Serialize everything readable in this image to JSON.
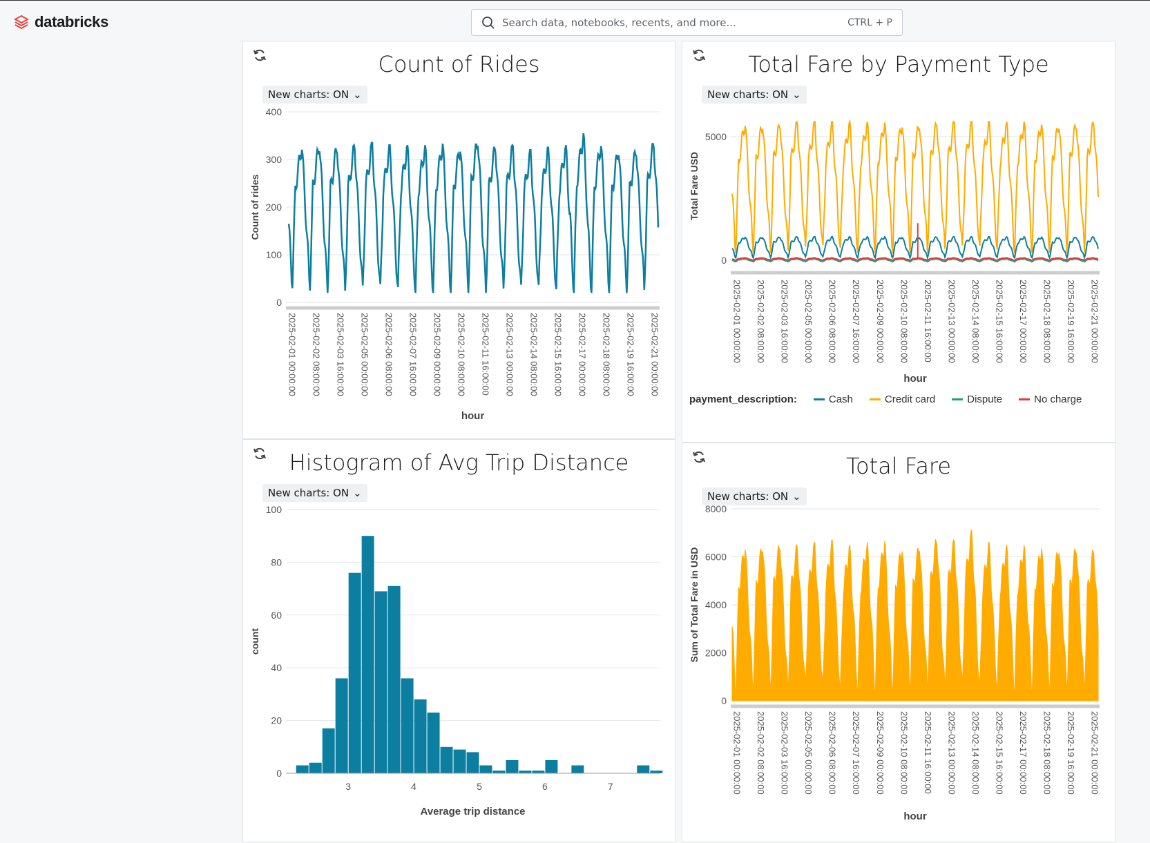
{
  "app": {
    "logo_text": "databricks"
  },
  "search": {
    "placeholder": "Search data, notebooks, recents, and more...",
    "shortcut": "CTRL + P"
  },
  "panels": [
    {
      "title": "Count of Rides",
      "toggle_label": "New charts: ON"
    },
    {
      "title": "Total Fare by Payment Type",
      "toggle_label": "New charts: ON"
    },
    {
      "title": "Histogram of Avg Trip Distance",
      "toggle_label": "New charts: ON"
    },
    {
      "title": "Total Fare",
      "toggle_label": "New charts: ON"
    }
  ],
  "colors": {
    "teal": "#0c7ea0",
    "orange": "#ffab00",
    "green": "#1aa37a",
    "red": "#e53935"
  },
  "chart_data": [
    {
      "type": "line",
      "title": "Count of Rides",
      "xlabel": "hour",
      "ylabel": "Count of rides",
      "ylim": [
        0,
        400
      ],
      "yticks": [
        0,
        100,
        200,
        300,
        400
      ],
      "xticks": [
        "2025-02-01 00:00:00",
        "2025-02-02 08:00:00",
        "2025-02-03 16:00:00",
        "2025-02-05 00:00:00",
        "2025-02-06 08:00:00",
        "2025-02-07 16:00:00",
        "2025-02-09 00:00:00",
        "2025-02-10 08:00:00",
        "2025-02-11 16:00:00",
        "2025-02-13 00:00:00",
        "2025-02-14 08:00:00",
        "2025-02-15 16:00:00",
        "2025-02-17 00:00:00",
        "2025-02-18 08:00:00",
        "2025-02-19 16:00:00",
        "2025-02-21 00:00:00"
      ],
      "daily_peaks": [
        330,
        335,
        330,
        330,
        335,
        330,
        330,
        330,
        335,
        330,
        345,
        330,
        330,
        320,
        325,
        330,
        355,
        335,
        325,
        325,
        335
      ],
      "daily_troughs": [
        30,
        25,
        20,
        20,
        20,
        20,
        20,
        20,
        20,
        20,
        20,
        20,
        20,
        20,
        20,
        20,
        20,
        20,
        20,
        20,
        25
      ],
      "series": [
        {
          "name": "Count of rides",
          "color": "#0c7ea0"
        }
      ],
      "grid": true
    },
    {
      "type": "line",
      "title": "Total Fare by Payment Type",
      "xlabel": "hour",
      "ylabel": "Total Fare USD",
      "ylim": [
        0,
        6000
      ],
      "yticks": [
        0,
        5000
      ],
      "xticks": [
        "2025-02-01 00:00:00",
        "2025-02-02 08:00:00",
        "2025-02-03 16:00:00",
        "2025-02-05 00:00:00",
        "2025-02-06 08:00:00",
        "2025-02-07 16:00:00",
        "2025-02-09 00:00:00",
        "2025-02-10 08:00:00",
        "2025-02-11 16:00:00",
        "2025-02-13 00:00:00",
        "2025-02-14 08:00:00",
        "2025-02-15 16:00:00",
        "2025-02-17 00:00:00",
        "2025-02-18 08:00:00",
        "2025-02-19 16:00:00",
        "2025-02-21 00:00:00"
      ],
      "legend_title": "payment_description:",
      "legend_position": "bottom",
      "series": [
        {
          "name": "Cash",
          "color": "#0c7ea0",
          "daily_peak": 950,
          "daily_trough": 100
        },
        {
          "name": "Credit card",
          "color": "#ffab00",
          "daily_peak": 5600,
          "daily_trough": 300
        },
        {
          "name": "Dispute",
          "color": "#1aa37a",
          "daily_peak": 60,
          "daily_trough": -60
        },
        {
          "name": "No charge",
          "color": "#e53935",
          "daily_peak": 100,
          "daily_trough": 0,
          "spike": 1500
        }
      ],
      "grid": true
    },
    {
      "type": "bar",
      "title": "Histogram of Avg Trip Distance",
      "xlabel": "Average trip distance",
      "ylabel": "count",
      "ylim": [
        0,
        100
      ],
      "xlim": [
        2.05,
        7.75
      ],
      "yticks": [
        0,
        20,
        40,
        60,
        80,
        100
      ],
      "xticks": [
        3,
        4,
        5,
        6,
        7
      ],
      "bin_width": 0.2,
      "bin_starts": [
        2.2,
        2.4,
        2.6,
        2.8,
        3.0,
        3.2,
        3.4,
        3.6,
        3.8,
        4.0,
        4.2,
        4.4,
        4.6,
        4.8,
        5.0,
        5.2,
        5.4,
        5.6,
        5.8,
        6.0,
        6.2,
        6.4,
        6.6,
        6.8,
        7.0,
        7.2,
        7.4,
        7.6
      ],
      "counts": [
        3,
        4,
        17,
        36,
        76,
        90,
        69,
        71,
        36,
        28,
        23,
        10,
        9,
        8,
        3,
        1,
        5,
        1,
        1,
        5,
        0,
        3,
        0,
        0,
        0,
        0,
        3,
        1
      ],
      "series": [
        {
          "name": "count",
          "color": "#0c7ea0"
        }
      ],
      "grid": true
    },
    {
      "type": "area",
      "title": "Total Fare",
      "xlabel": "hour",
      "ylabel": "Sum of Total Fare in USD",
      "ylim": [
        0,
        8000
      ],
      "yticks": [
        0,
        2000,
        4000,
        6000,
        8000
      ],
      "xticks": [
        "2025-02-01 00:00:00",
        "2025-02-02 08:00:00",
        "2025-02-03 16:00:00",
        "2025-02-05 00:00:00",
        "2025-02-06 08:00:00",
        "2025-02-07 16:00:00",
        "2025-02-09 00:00:00",
        "2025-02-10 08:00:00",
        "2025-02-11 16:00:00",
        "2025-02-13 00:00:00",
        "2025-02-14 08:00:00",
        "2025-02-15 16:00:00",
        "2025-02-17 00:00:00",
        "2025-02-18 08:00:00",
        "2025-02-19 16:00:00",
        "2025-02-21 00:00:00"
      ],
      "daily_peaks": [
        6500,
        6600,
        6600,
        6500,
        6600,
        6700,
        6500,
        6600,
        6700,
        6500,
        6600,
        6800,
        6700,
        7100,
        6600,
        6500,
        6500,
        6500,
        6500,
        6500,
        6300
      ],
      "daily_troughs": [
        300,
        300,
        300,
        300,
        300,
        300,
        300,
        300,
        300,
        300,
        300,
        300,
        300,
        300,
        300,
        300,
        300,
        300,
        300,
        300,
        300
      ],
      "series": [
        {
          "name": "Sum of Total Fare in USD",
          "color": "#ffab00"
        }
      ],
      "grid": true
    }
  ]
}
